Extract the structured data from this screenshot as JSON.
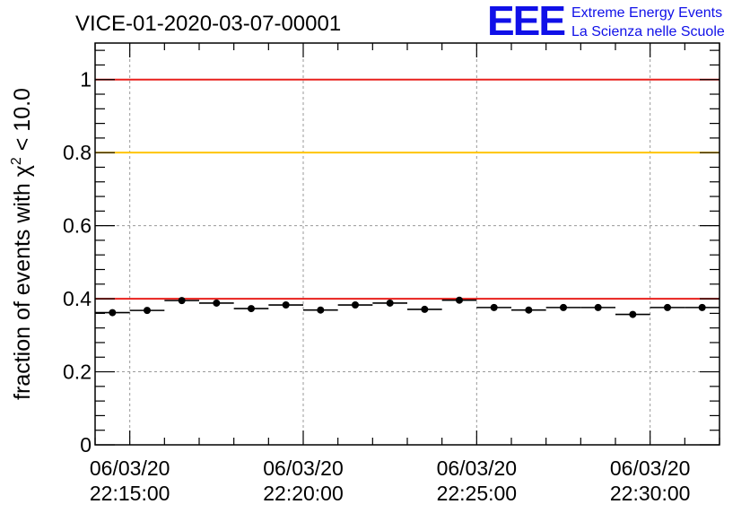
{
  "chart_data": {
    "type": "scatter",
    "title": "VICE-01-2020-03-07-00001",
    "ylabel": "fraction of events with χ² < 10.0",
    "ylabel_parts": {
      "prefix": "fraction of events with ",
      "symbol": "χ",
      "sup": "2",
      "suffix": " < 10.0"
    },
    "xlabel": "",
    "ylim": [
      0,
      1.1
    ],
    "xlim": [
      "2020-03-06 22:14:00",
      "2020-03-06 22:32:00"
    ],
    "y_ticks": [
      {
        "value": 0,
        "label": "0"
      },
      {
        "value": 0.2,
        "label": "0.2"
      },
      {
        "value": 0.4,
        "label": "0.4"
      },
      {
        "value": 0.6,
        "label": "0.6"
      },
      {
        "value": 0.8,
        "label": "0.8"
      },
      {
        "value": 1,
        "label": "1"
      }
    ],
    "x_ticks": [
      {
        "value": "2020-03-06 22:15:00",
        "date": "06/03/20",
        "time": "22:15:00"
      },
      {
        "value": "2020-03-06 22:20:00",
        "date": "06/03/20",
        "time": "22:20:00"
      },
      {
        "value": "2020-03-06 22:25:00",
        "date": "06/03/20",
        "time": "22:25:00"
      },
      {
        "value": "2020-03-06 22:30:00",
        "date": "06/03/20",
        "time": "22:30:00"
      }
    ],
    "grid": true,
    "reference_lines": [
      {
        "y": 1.0,
        "color": "#e8201c"
      },
      {
        "y": 0.8,
        "color": "#ffc400"
      },
      {
        "y": 0.4,
        "color": "#e8201c"
      }
    ],
    "series": [
      {
        "marker_color": "#000000",
        "points": [
          {
            "x": "2020-03-06 22:14:30",
            "y": 0.362
          },
          {
            "x": "2020-03-06 22:15:30",
            "y": 0.368
          },
          {
            "x": "2020-03-06 22:16:30",
            "y": 0.395
          },
          {
            "x": "2020-03-06 22:17:30",
            "y": 0.388
          },
          {
            "x": "2020-03-06 22:18:30",
            "y": 0.373
          },
          {
            "x": "2020-03-06 22:19:30",
            "y": 0.383
          },
          {
            "x": "2020-03-06 22:20:30",
            "y": 0.369
          },
          {
            "x": "2020-03-06 22:21:30",
            "y": 0.383
          },
          {
            "x": "2020-03-06 22:22:30",
            "y": 0.388
          },
          {
            "x": "2020-03-06 22:23:30",
            "y": 0.371
          },
          {
            "x": "2020-03-06 22:24:30",
            "y": 0.396
          },
          {
            "x": "2020-03-06 22:25:30",
            "y": 0.376
          },
          {
            "x": "2020-03-06 22:26:30",
            "y": 0.369
          },
          {
            "x": "2020-03-06 22:27:30",
            "y": 0.376
          },
          {
            "x": "2020-03-06 22:28:30",
            "y": 0.376
          },
          {
            "x": "2020-03-06 22:29:30",
            "y": 0.357
          },
          {
            "x": "2020-03-06 22:30:30",
            "y": 0.376
          },
          {
            "x": "2020-03-06 22:31:30",
            "y": 0.376
          }
        ],
        "bin_width_seconds": 60
      }
    ]
  },
  "logo": {
    "mark": "EEE",
    "line1": "Extreme Energy Events",
    "line2": "La Scienza nelle Scuole"
  }
}
